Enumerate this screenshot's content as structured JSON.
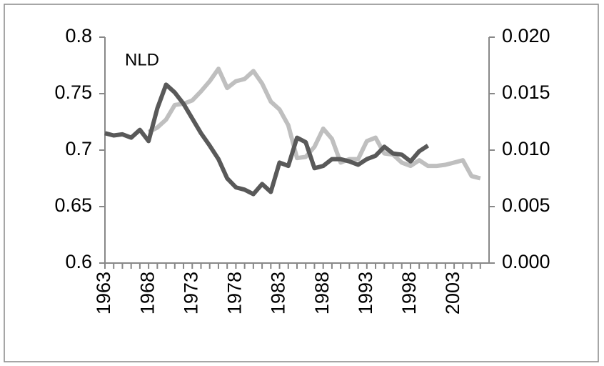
{
  "chart_data": {
    "type": "line",
    "annotation": "NLD",
    "categories": [
      "1963",
      null,
      null,
      null,
      null,
      "1968",
      null,
      null,
      null,
      null,
      "1973",
      null,
      null,
      null,
      null,
      "1978",
      null,
      null,
      null,
      null,
      "1983",
      null,
      null,
      null,
      null,
      "1988",
      null,
      null,
      null,
      null,
      "1993",
      null,
      null,
      null,
      null,
      "1998",
      null,
      null,
      null,
      null,
      "2003",
      null,
      null,
      null
    ],
    "series": [
      {
        "color": "#bfbfbf",
        "axis": "y2",
        "values": [
          null,
          null,
          null,
          null,
          null,
          0.0116,
          0.012,
          0.0127,
          0.014,
          0.0141,
          0.0144,
          0.0152,
          0.0161,
          0.0172,
          0.0155,
          0.0161,
          0.0163,
          0.017,
          0.0159,
          0.0143,
          0.0136,
          0.0122,
          0.0093,
          0.0094,
          0.0103,
          0.0119,
          0.011,
          0.0089,
          0.0092,
          0.0092,
          0.0108,
          0.0111,
          0.0097,
          0.0096,
          0.0089,
          0.0086,
          0.0091,
          0.0086,
          0.0086,
          0.0087,
          0.0089,
          0.0091,
          0.0077,
          0.0075
        ]
      },
      {
        "color": "#595959",
        "axis": "y",
        "values": [
          0.715,
          0.713,
          0.714,
          0.711,
          0.718,
          0.708,
          0.737,
          0.758,
          0.751,
          0.741,
          0.728,
          0.715,
          0.704,
          0.692,
          0.675,
          0.667,
          0.665,
          0.661,
          0.67,
          0.663,
          0.689,
          0.686,
          0.711,
          0.707,
          0.684,
          0.686,
          0.692,
          0.692,
          0.69,
          0.687,
          0.692,
          0.695,
          0.703,
          0.697,
          0.696,
          0.69,
          0.699,
          0.704,
          null,
          null,
          null,
          null,
          null,
          null
        ]
      }
    ],
    "ylim": [
      0.6,
      0.8
    ],
    "yticks": [
      0.6,
      0.65,
      0.7,
      0.75,
      0.8
    ],
    "y2lim": [
      0,
      0.02
    ],
    "y2ticks": [
      {
        "value": 0,
        "label": "0.000"
      },
      {
        "value": 0.005,
        "label": "0.005"
      },
      {
        "value": 0.01,
        "label": "0.010"
      },
      {
        "value": 0.015,
        "label": "0.015"
      },
      {
        "value": 0.02,
        "label": "0.020"
      }
    ],
    "grid": false
  }
}
